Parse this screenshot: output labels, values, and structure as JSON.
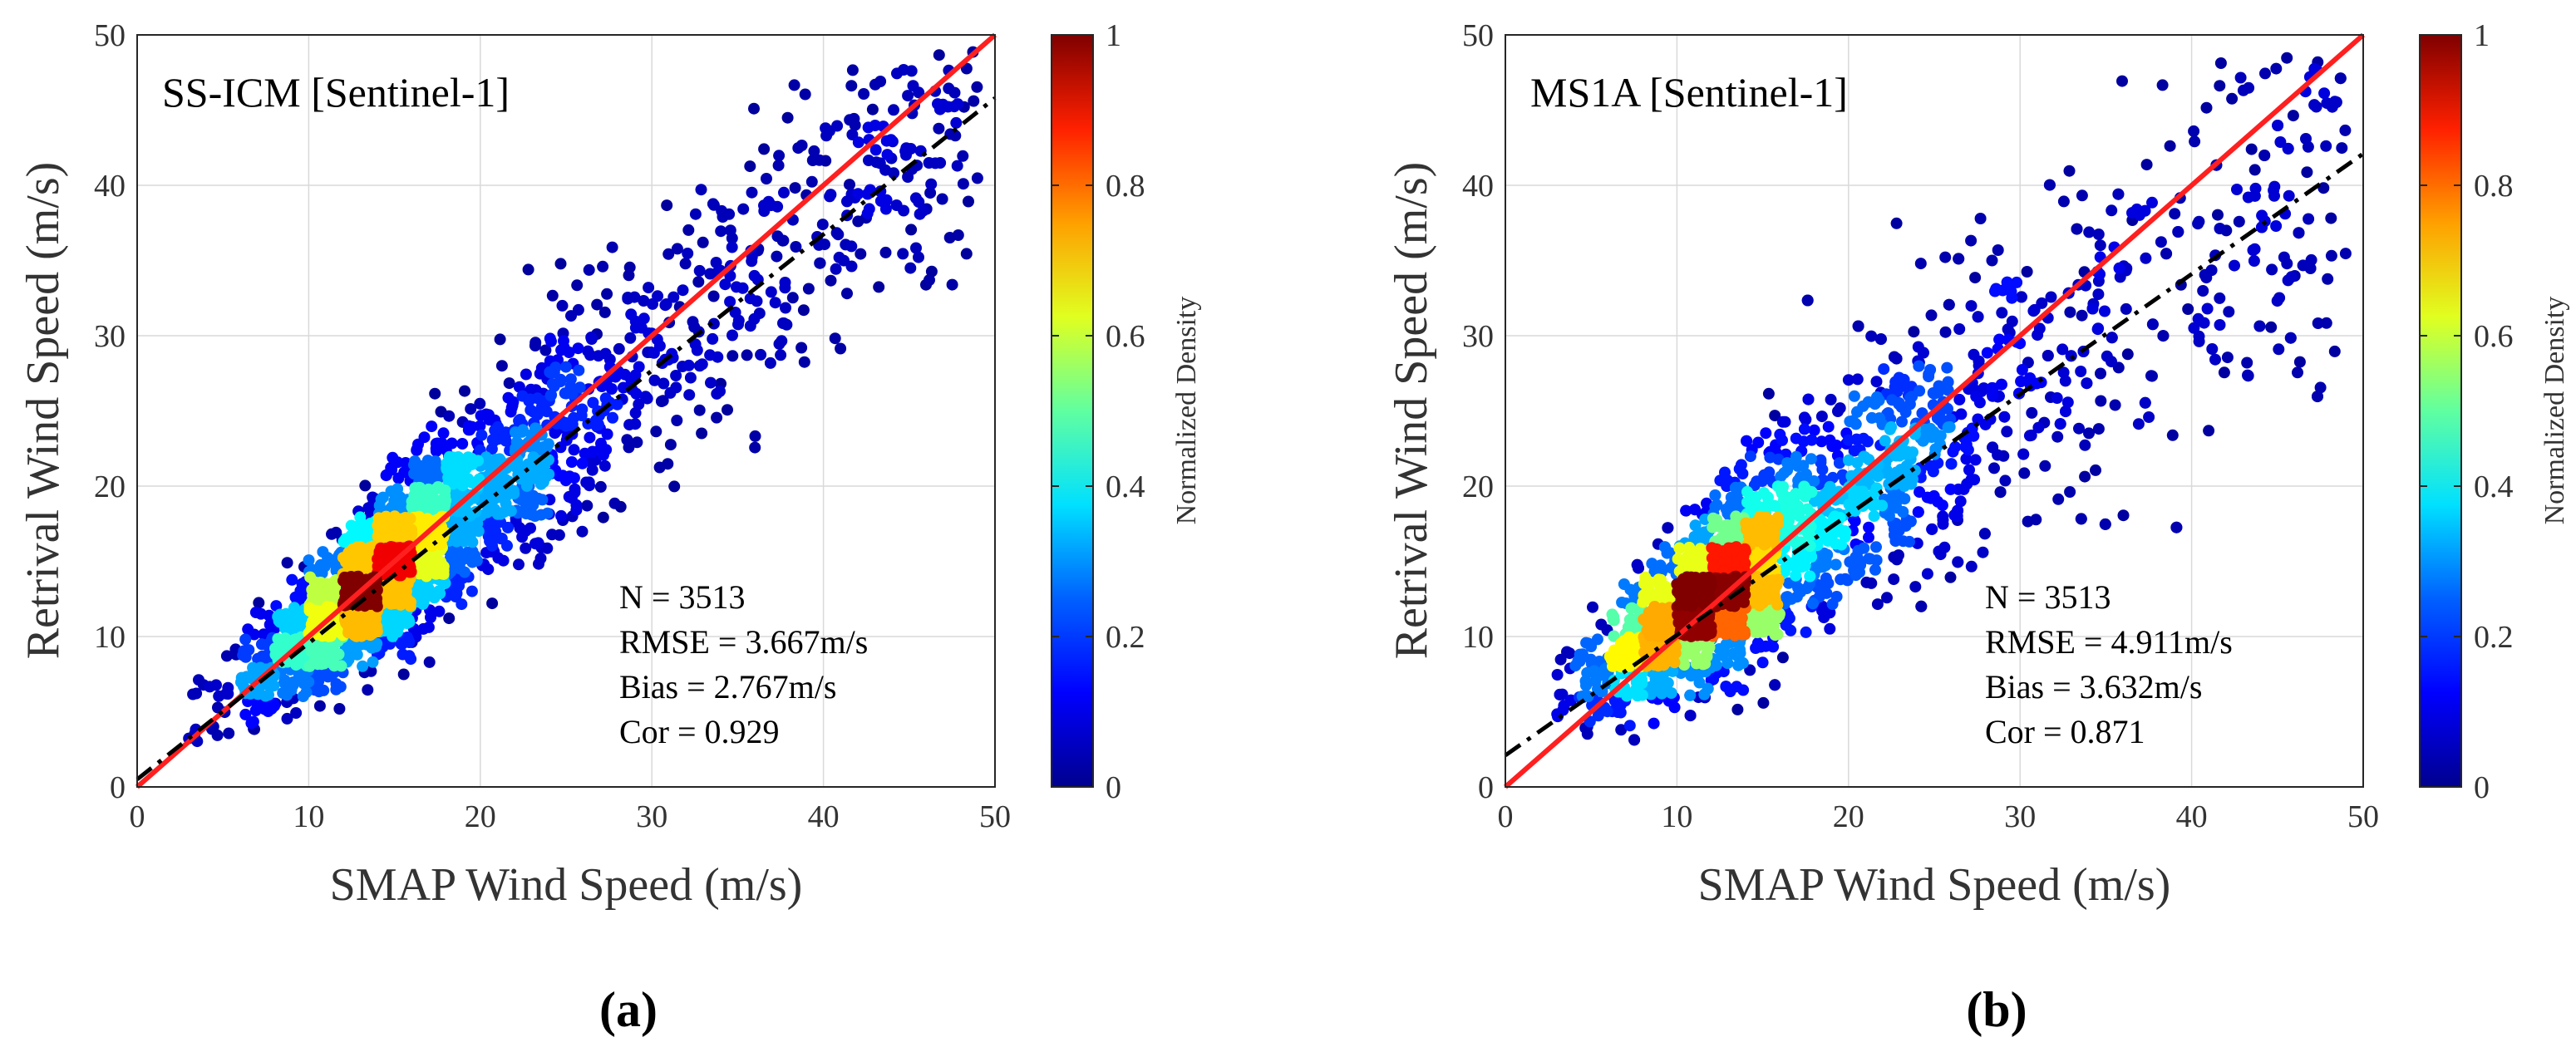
{
  "figure": {
    "colorbar_label": "Normalized Density",
    "colorbar_ticks": [
      "0",
      "0.2",
      "0.4",
      "0.6",
      "0.8",
      "1"
    ],
    "colors": {
      "identity_line": "#ff1f1f",
      "fit_line": "#000000",
      "grid": "#d9d9d9",
      "colormap": [
        "#00008f",
        "#0000ff",
        "#0080ff",
        "#00ffff",
        "#80ff80",
        "#ffff00",
        "#ff8000",
        "#ff0000",
        "#800000"
      ]
    }
  },
  "chart_data": [
    {
      "type": "scatter",
      "panel_label": "(a)",
      "title": "SS-ICM [Sentinel-1]",
      "xlabel": "SMAP Wind Speed (m/s)",
      "ylabel": "Retrival Wind Speed (m/s)",
      "xlim": [
        0,
        50
      ],
      "ylim": [
        0,
        50
      ],
      "xticks": [
        0,
        10,
        20,
        30,
        40,
        50
      ],
      "yticks": [
        0,
        10,
        20,
        30,
        40,
        50
      ],
      "grid": true,
      "point_color": "normalized density",
      "stats": {
        "n": "N = 3513",
        "rmse": "RMSE = 3.667m/s",
        "bias": "Bias = 2.767m/s",
        "cor": "Cor = 0.929"
      },
      "reference_line": {
        "name": "1:1",
        "x": [
          0,
          50
        ],
        "y": [
          0,
          50
        ]
      },
      "fit_line": {
        "name": "linear fit",
        "x": [
          0,
          50
        ],
        "y": [
          0.5,
          45.8
        ]
      },
      "density_peak": {
        "x": 13.5,
        "y": 13.5
      }
    },
    {
      "type": "scatter",
      "panel_label": "(b)",
      "title": "MS1A [Sentinel-1]",
      "xlabel": "SMAP Wind Speed (m/s)",
      "ylabel": "Retrival Wind Speed (m/s)",
      "xlim": [
        0,
        50
      ],
      "ylim": [
        0,
        50
      ],
      "xticks": [
        0,
        10,
        20,
        30,
        40,
        50
      ],
      "yticks": [
        0,
        10,
        20,
        30,
        40,
        50
      ],
      "grid": true,
      "point_color": "normalized density",
      "stats": {
        "n": "N = 3513",
        "rmse": "RMSE = 4.911m/s",
        "bias": "Bias = 3.632m/s",
        "cor": "Cor = 0.871"
      },
      "reference_line": {
        "name": "1:1",
        "x": [
          0,
          50
        ],
        "y": [
          0,
          50
        ]
      },
      "fit_line": {
        "name": "linear fit",
        "x": [
          0,
          50
        ],
        "y": [
          2.1,
          42.1
        ]
      },
      "density_peak": {
        "x": 11.5,
        "y": 11
      }
    }
  ]
}
